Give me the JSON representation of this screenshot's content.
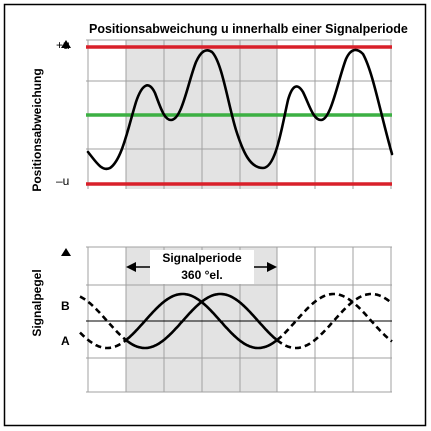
{
  "top_panel": {
    "title": "Positionsabweichung u innerhalb einer Signalperiode",
    "y_axis_label": "Positionsabweichung",
    "tick_plus": "+u",
    "tick_minus": "–u",
    "limit_line_color": "#d9202a",
    "zero_line_color": "#3cb043",
    "curve_color": "#000000"
  },
  "bottom_panel": {
    "y_axis_label": "Signalpegel",
    "period_label": "Signalperiode",
    "period_value": "360 °el.",
    "signal_b_label": "B",
    "signal_a_label": "A",
    "curve_color": "#000000"
  },
  "colors": {
    "grid": "#a0a0a0",
    "highlight": "#e3e3e3",
    "frame": "#000000"
  }
}
